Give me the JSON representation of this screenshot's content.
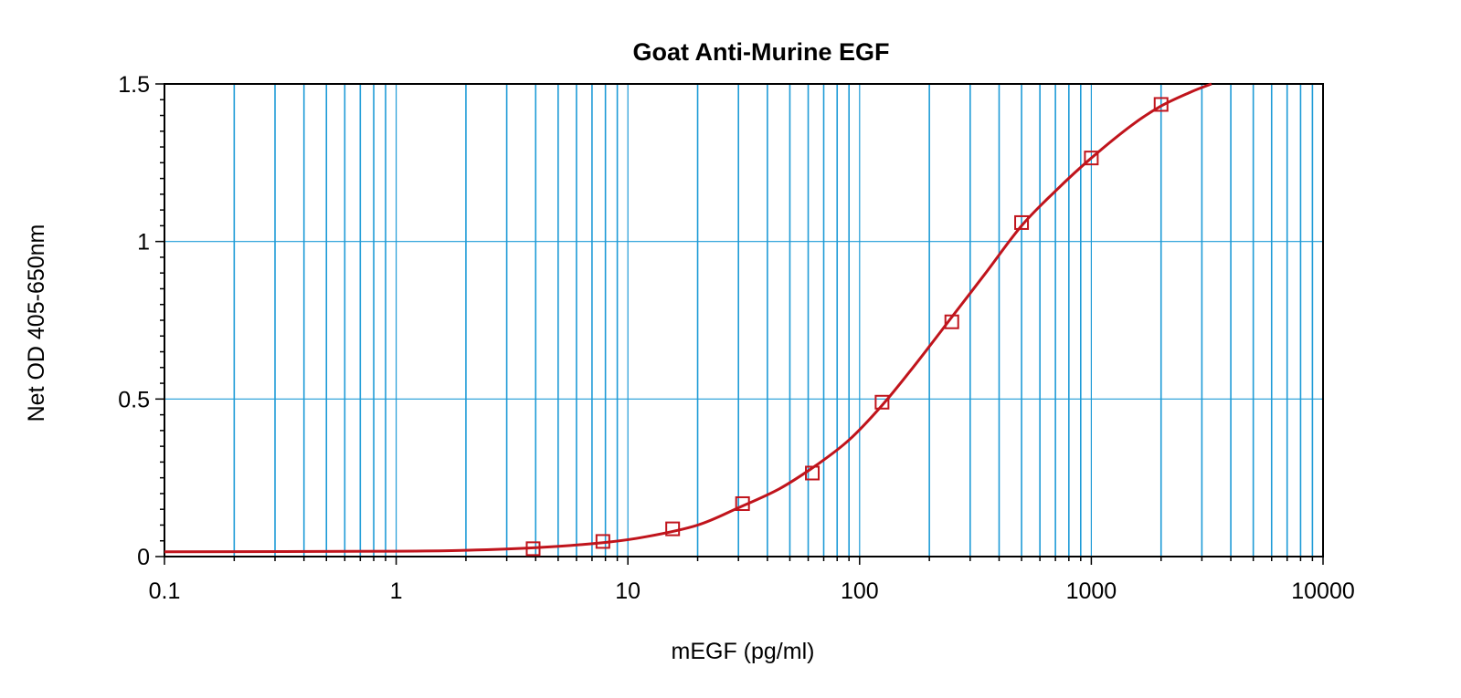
{
  "chart_data": {
    "type": "scatter",
    "title": "Goat Anti-Murine EGF",
    "xlabel": "mEGF (pg/ml)",
    "ylabel": "Net OD 405-650nm",
    "x_scale": "log",
    "xlim": [
      0.1,
      10000
    ],
    "ylim": [
      0,
      1.5
    ],
    "x_ticks": [
      {
        "value": 0.1,
        "label": "0.1"
      },
      {
        "value": 1,
        "label": "1"
      },
      {
        "value": 10,
        "label": "10"
      },
      {
        "value": 100,
        "label": "100"
      },
      {
        "value": 1000,
        "label": "1000"
      },
      {
        "value": 10000,
        "label": "10000"
      }
    ],
    "y_ticks": [
      {
        "value": 0,
        "label": "0"
      },
      {
        "value": 0.5,
        "label": "0.5"
      },
      {
        "value": 1,
        "label": "1"
      },
      {
        "value": 1.5,
        "label": "1.5"
      }
    ],
    "grid": true,
    "colors": {
      "grid": "#1e9bd7",
      "series": "#c0141c",
      "axis": "#000000"
    },
    "series": [
      {
        "marker": "open-square",
        "points": [
          {
            "x": 3.9,
            "y": 0.025
          },
          {
            "x": 7.8,
            "y": 0.048
          },
          {
            "x": 15.6,
            "y": 0.088
          },
          {
            "x": 31.25,
            "y": 0.168
          },
          {
            "x": 62.5,
            "y": 0.265
          },
          {
            "x": 125,
            "y": 0.49
          },
          {
            "x": 250,
            "y": 0.745
          },
          {
            "x": 500,
            "y": 1.06
          },
          {
            "x": 1000,
            "y": 1.265
          },
          {
            "x": 2000,
            "y": 1.435
          }
        ],
        "fit_curve": [
          {
            "x": 0.1,
            "y": 0.015
          },
          {
            "x": 1,
            "y": 0.017
          },
          {
            "x": 2,
            "y": 0.02
          },
          {
            "x": 4,
            "y": 0.028
          },
          {
            "x": 8,
            "y": 0.045
          },
          {
            "x": 12,
            "y": 0.063
          },
          {
            "x": 20,
            "y": 0.1
          },
          {
            "x": 30,
            "y": 0.155
          },
          {
            "x": 45,
            "y": 0.215
          },
          {
            "x": 65,
            "y": 0.29
          },
          {
            "x": 90,
            "y": 0.37
          },
          {
            "x": 125,
            "y": 0.48
          },
          {
            "x": 170,
            "y": 0.6
          },
          {
            "x": 250,
            "y": 0.76
          },
          {
            "x": 350,
            "y": 0.9
          },
          {
            "x": 500,
            "y": 1.05
          },
          {
            "x": 700,
            "y": 1.16
          },
          {
            "x": 1000,
            "y": 1.265
          },
          {
            "x": 1500,
            "y": 1.37
          },
          {
            "x": 2000,
            "y": 1.43
          },
          {
            "x": 2700,
            "y": 1.475
          },
          {
            "x": 3300,
            "y": 1.5
          }
        ]
      }
    ]
  }
}
